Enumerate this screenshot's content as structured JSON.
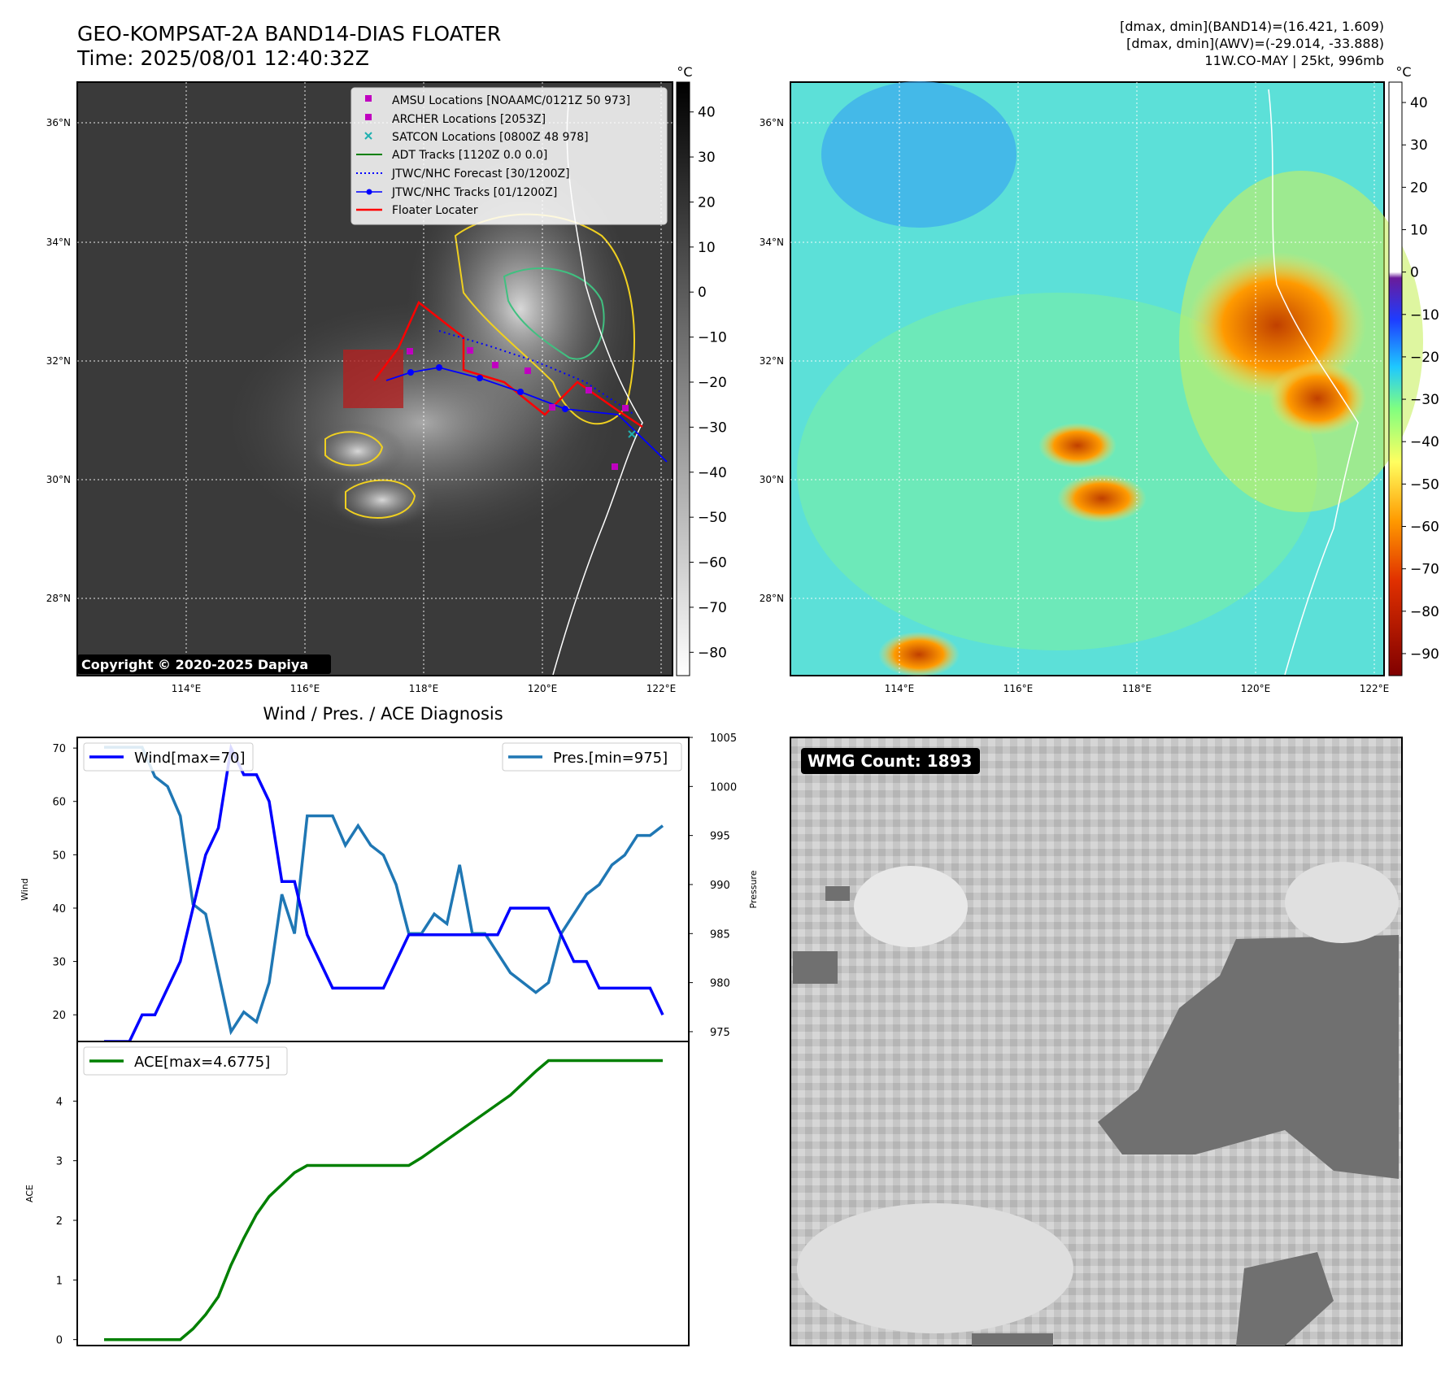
{
  "header": {
    "title_line1": "GEO-KOMPSAT-2A BAND14-DIAS FLOATER",
    "title_line2": "Time: 2025/08/01 12:40:32Z",
    "info_line1": "[dmax, dmin](BAND14)=(16.421, 1.609)",
    "info_line2": "[dmax, dmin](AWV)=(-29.014, -33.888)",
    "info_line3": "11W.CO-MAY | 25kt, 996mb"
  },
  "copyright": "Copyright © 2020-2025 Dapiya",
  "colorbar_left": {
    "unit": "°C",
    "ticks": [
      "40",
      "30",
      "20",
      "10",
      "0",
      "−10",
      "−20",
      "−30",
      "−40",
      "−50",
      "−60",
      "−70",
      "−80"
    ]
  },
  "colorbar_right": {
    "unit": "°C",
    "ticks": [
      "40",
      "30",
      "20",
      "10",
      "0",
      "−10",
      "−20",
      "−30",
      "−40",
      "−50",
      "−60",
      "−70",
      "−80",
      "−90"
    ]
  },
  "map_axes": {
    "lon_labels": [
      "114°E",
      "116°E",
      "118°E",
      "120°E",
      "122°E"
    ],
    "lat_labels": [
      "36°N",
      "34°N",
      "32°N",
      "30°N",
      "28°N"
    ]
  },
  "legend": {
    "items": [
      {
        "label": "AMSU Locations [NOAAMC/0121Z 50 973]",
        "color": "#c000c0",
        "icon": "square-marker"
      },
      {
        "label": "ARCHER Locations [2053Z]",
        "color": "#c000c0",
        "icon": "square-marker"
      },
      {
        "label": "SATCON Locations [0800Z 48 978]",
        "color": "#20b0b0",
        "icon": "x-marker"
      },
      {
        "label": "ADT Tracks [1120Z 0.0 0.0]",
        "color": "#008000",
        "icon": "solid-line"
      },
      {
        "label": "JTWC/NHC Forecast [30/1200Z]",
        "color": "#0000ff",
        "icon": "dotted-line"
      },
      {
        "label": "JTWC/NHC Tracks [01/1200Z]",
        "color": "#0000ff",
        "icon": "line-dot"
      },
      {
        "label": "Floater Locater",
        "color": "#ff0000",
        "icon": "solid-line"
      }
    ]
  },
  "colors": {
    "wind": "#0000ff",
    "pressure": "#1f77b4",
    "ace": "#008000",
    "track": "#0000ff",
    "floater": "#ff0000"
  },
  "wmg": {
    "label": "WMG Count: 1893"
  },
  "chart_data": [
    {
      "type": "line",
      "title": "Wind / Pres. / ACE Diagnosis",
      "ylabel": "Wind",
      "y2label": "Pressure",
      "ylim": [
        15,
        72
      ],
      "y2lim": [
        974,
        1005
      ],
      "yticks": [
        20,
        30,
        40,
        50,
        60,
        70
      ],
      "y2ticks": [
        975,
        980,
        985,
        990,
        995,
        1000,
        1005
      ],
      "series": [
        {
          "name": "Wind[max=70]",
          "axis": "left",
          "values": [
            15,
            15,
            15,
            20,
            20,
            25,
            30,
            40,
            50,
            55,
            70,
            65,
            65,
            60,
            45,
            45,
            35,
            30,
            25,
            25,
            25,
            25,
            25,
            30,
            35,
            35,
            35,
            35,
            35,
            35,
            35,
            35,
            40,
            40,
            40,
            40,
            35,
            30,
            30,
            25,
            25,
            25,
            25,
            25,
            20
          ]
        },
        {
          "name": "Pres.[min=975]",
          "axis": "right",
          "values": [
            1004,
            1004,
            1004,
            1004,
            1001,
            1000,
            997,
            988,
            987,
            981,
            975,
            977,
            976,
            980,
            989,
            985,
            997,
            997,
            997,
            994,
            996,
            994,
            993,
            990,
            985,
            985,
            987,
            986,
            992,
            985,
            985,
            983,
            981,
            980,
            979,
            980,
            985,
            987,
            989,
            990,
            992,
            993,
            995,
            995,
            996
          ]
        }
      ]
    },
    {
      "type": "line",
      "ylabel": "ACE",
      "ylim": [
        -0.1,
        5.0
      ],
      "yticks": [
        0,
        1,
        2,
        3,
        4
      ],
      "series": [
        {
          "name": "ACE[max=4.6775]",
          "values": [
            0,
            0,
            0,
            0,
            0,
            0,
            0,
            0.18,
            0.42,
            0.72,
            1.25,
            1.7,
            2.1,
            2.4,
            2.6,
            2.8,
            2.92,
            2.92,
            2.92,
            2.92,
            2.92,
            2.92,
            2.92,
            2.92,
            2.92,
            3.05,
            3.2,
            3.35,
            3.5,
            3.65,
            3.8,
            3.95,
            4.1,
            4.3,
            4.5,
            4.68,
            4.68,
            4.68,
            4.68,
            4.68,
            4.68,
            4.68,
            4.68,
            4.68,
            4.68
          ]
        }
      ]
    }
  ]
}
